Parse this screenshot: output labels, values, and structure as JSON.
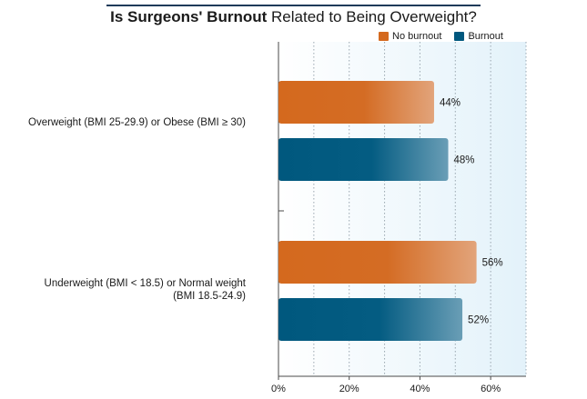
{
  "title_bold": "Is Surgeons' Burnout",
  "title_rest": " Related to Being Overweight?",
  "legend": [
    {
      "label": "No burnout",
      "color": "#d4691e"
    },
    {
      "label": "Burnout",
      "color": "#00587e"
    }
  ],
  "chart_data": {
    "type": "bar",
    "orientation": "horizontal",
    "categories": [
      "Overweight (BMI 25-29.9) or Obese (BMI ≥ 30)",
      "Underweight (BMI < 18.5) or Normal weight (BMI 18.5-24.9)"
    ],
    "series": [
      {
        "name": "No burnout",
        "values": [
          44,
          56
        ],
        "labels": [
          "44%",
          "56%"
        ],
        "color": "#d4691e"
      },
      {
        "name": "Burnout",
        "values": [
          48,
          52
        ],
        "labels": [
          "48%",
          "52%"
        ],
        "color": "#00587e"
      }
    ],
    "xlim": [
      0,
      70
    ],
    "xticks": [
      0,
      20,
      40,
      60
    ],
    "xtick_labels": [
      "0%",
      "20%",
      "40%",
      "60%"
    ],
    "grid": true,
    "legend_position": "top-right"
  }
}
